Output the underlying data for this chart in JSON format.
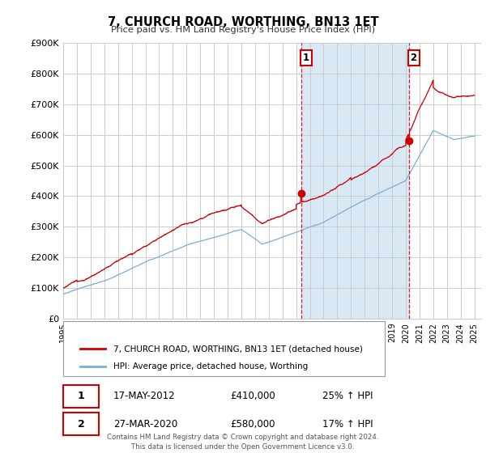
{
  "title": "7, CHURCH ROAD, WORTHING, BN13 1ET",
  "subtitle": "Price paid vs. HM Land Registry's House Price Index (HPI)",
  "ylabel_ticks": [
    "£0",
    "£100K",
    "£200K",
    "£300K",
    "£400K",
    "£500K",
    "£600K",
    "£700K",
    "£800K",
    "£900K"
  ],
  "ytick_values": [
    0,
    100000,
    200000,
    300000,
    400000,
    500000,
    600000,
    700000,
    800000,
    900000
  ],
  "ylim": [
    0,
    900000
  ],
  "red_color": "#cc0000",
  "blue_color": "#7dadd4",
  "shaded_color": "#d8e8f5",
  "grid_color": "#cccccc",
  "background_color": "#ffffff",
  "sale1_x": 2012.37,
  "sale1_y": 410000,
  "sale2_x": 2020.23,
  "sale2_y": 580000,
  "ann1_label": "1",
  "ann1_date": "17-MAY-2012",
  "ann1_price": "£410,000",
  "ann1_hpi": "25% ↑ HPI",
  "ann2_label": "2",
  "ann2_date": "27-MAR-2020",
  "ann2_price": "£580,000",
  "ann2_hpi": "17% ↑ HPI",
  "legend_red": "7, CHURCH ROAD, WORTHING, BN13 1ET (detached house)",
  "legend_blue": "HPI: Average price, detached house, Worthing",
  "footer": "Contains HM Land Registry data © Crown copyright and database right 2024.\nThis data is licensed under the Open Government Licence v3.0.",
  "xmin": 1995.0,
  "xmax": 2025.5
}
